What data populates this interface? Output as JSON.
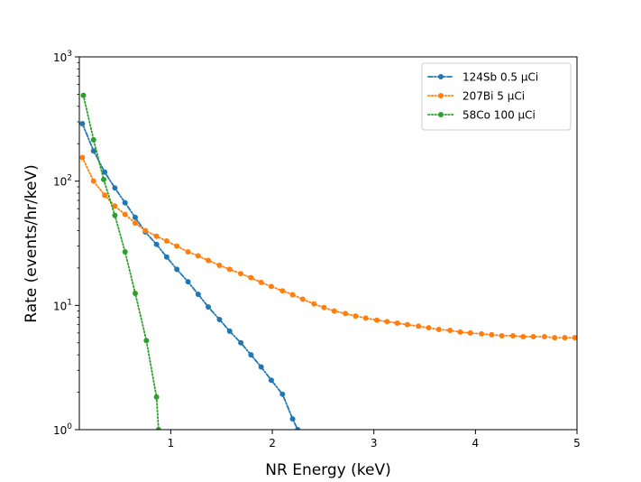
{
  "chart_data": {
    "type": "line",
    "xlabel": "NR Energy (keV)",
    "ylabel": "Rate (events/hr/keV)",
    "xlim": [
      0.1,
      5.0
    ],
    "ylim": [
      1,
      1000
    ],
    "yscale": "log",
    "grid": false,
    "legend_position": "top-right",
    "x_ticks": [
      1,
      2,
      3,
      4,
      5
    ],
    "y_ticks": [
      {
        "value": 1,
        "base": "10",
        "exp": "0"
      },
      {
        "value": 10,
        "base": "10",
        "exp": "1"
      },
      {
        "value": 100,
        "base": "10",
        "exp": "2"
      },
      {
        "value": 1000,
        "base": "10",
        "exp": "3"
      }
    ],
    "series": [
      {
        "name": "124Sb 0.5 µCi",
        "color": "#1f77b4",
        "linestyle": "dashdot",
        "x": [
          0.13,
          0.24,
          0.35,
          0.45,
          0.55,
          0.65,
          0.75,
          0.86,
          0.96,
          1.06,
          1.17,
          1.27,
          1.37,
          1.48,
          1.58,
          1.69,
          1.79,
          1.89,
          1.99,
          2.1,
          2.2,
          2.25
        ],
        "y": [
          290,
          175,
          118,
          88,
          67,
          51,
          39,
          31,
          24.5,
          19.5,
          15.5,
          12.3,
          9.7,
          7.7,
          6.2,
          5.0,
          4.0,
          3.2,
          2.5,
          1.93,
          1.22,
          1.0
        ]
      },
      {
        "name": "207Bi 5 µCi",
        "color": "#ff7f0e",
        "linestyle": "dotted",
        "x": [
          0.13,
          0.24,
          0.35,
          0.45,
          0.55,
          0.65,
          0.75,
          0.86,
          0.96,
          1.06,
          1.17,
          1.27,
          1.37,
          1.48,
          1.58,
          1.69,
          1.79,
          1.89,
          1.99,
          2.1,
          2.2,
          2.3,
          2.41,
          2.51,
          2.61,
          2.72,
          2.82,
          2.92,
          3.03,
          3.13,
          3.23,
          3.33,
          3.44,
          3.54,
          3.64,
          3.75,
          3.85,
          3.95,
          4.06,
          4.16,
          4.26,
          4.37,
          4.47,
          4.57,
          4.68,
          4.78,
          4.88,
          4.98
        ],
        "y": [
          155,
          100,
          77,
          63,
          54,
          46,
          40,
          36,
          33,
          30,
          27,
          25,
          23,
          21,
          19.5,
          18,
          16.7,
          15.3,
          14.2,
          13.1,
          12.2,
          11.2,
          10.3,
          9.6,
          9.0,
          8.6,
          8.2,
          7.9,
          7.6,
          7.4,
          7.2,
          7.0,
          6.8,
          6.6,
          6.4,
          6.3,
          6.1,
          6.0,
          5.9,
          5.8,
          5.7,
          5.7,
          5.6,
          5.6,
          5.6,
          5.5,
          5.5,
          5.5
        ]
      },
      {
        "name": "58Co 100 µCi",
        "color": "#2ca02c",
        "linestyle": "dotted",
        "x": [
          0.14,
          0.24,
          0.34,
          0.45,
          0.55,
          0.65,
          0.76,
          0.86,
          0.88
        ],
        "y": [
          490,
          215,
          103,
          53,
          27,
          12.5,
          5.2,
          1.83,
          1.0
        ]
      }
    ]
  }
}
